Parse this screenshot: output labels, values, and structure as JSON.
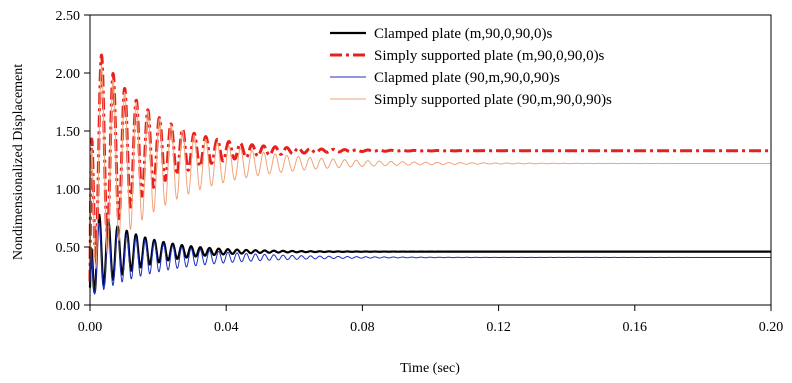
{
  "chart_data": {
    "type": "line",
    "title": "",
    "xlabel": "Time (sec)",
    "ylabel": "Nondimensionalized Displacement",
    "xlim": [
      0,
      0.2
    ],
    "ylim": [
      0,
      2.5
    ],
    "x_ticks": [
      "0.00",
      "0.04",
      "0.08",
      "0.12",
      "0.16",
      "0.20"
    ],
    "y_ticks": [
      "0.00",
      "0.50",
      "1.00",
      "1.50",
      "2.00",
      "2.50"
    ],
    "grid": false,
    "legend_position": "top-right",
    "series": [
      {
        "name": "Clamped plate (m,90,0,90,0)s",
        "color": "#000000",
        "style": "solid",
        "final_value": 0.46,
        "peak_first": 0.85,
        "initial_value": 0.15,
        "oscillation_period": 0.0027,
        "decay_time": 0.014
      },
      {
        "name": "Simply supported plate (m,90,0,90,0)s",
        "color": "#e8201c",
        "style": "dash-dot",
        "final_value": 1.33,
        "peak_first": 2.35,
        "initial_value": 0.2,
        "oscillation_period": 0.0034,
        "decay_time": 0.016
      },
      {
        "name": "Clapmed plate (90,m,90,0,90)s",
        "color": "#1d2fbf",
        "style": "solid",
        "final_value": 0.41,
        "peak_first": 0.75,
        "initial_value": 0.1,
        "oscillation_period": 0.0027,
        "decay_time": 0.02
      },
      {
        "name": "Simply supported plate (90,m,90,0,90)s",
        "color": "#f2a37a",
        "style": "solid",
        "final_value": 1.22,
        "peak_first": 2.2,
        "initial_value": 0.2,
        "oscillation_period": 0.0034,
        "decay_time": 0.022
      }
    ]
  }
}
